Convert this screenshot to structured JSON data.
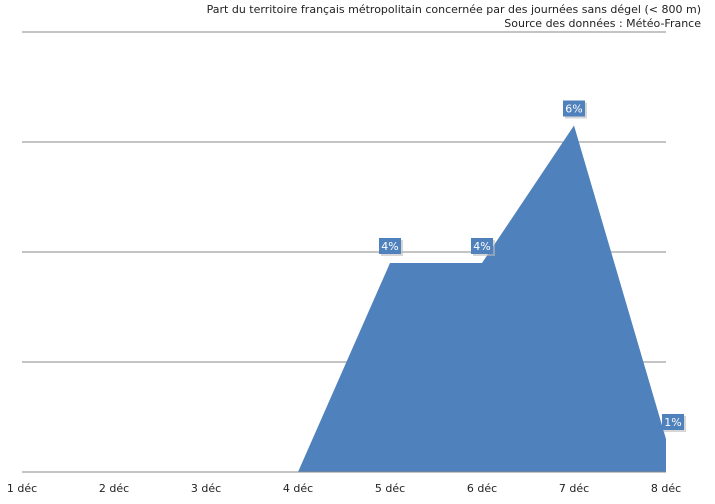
{
  "chart_data": {
    "type": "area",
    "title": "Part du territoire français métropolitain concernée par des journées sans dégel (< 800 m)",
    "subtitle": "Source des données : Météo-France",
    "categories": [
      "1 déc",
      "2 déc",
      "3 déc",
      "4 déc",
      "5 déc",
      "6 déc",
      "7 déc",
      "8 déc"
    ],
    "values": [
      0,
      0,
      0,
      0,
      3.8,
      3.8,
      6.3,
      0.6
    ],
    "data_labels": [
      null,
      null,
      null,
      null,
      "4%",
      "4%",
      "6%",
      "1%"
    ],
    "ylim": [
      0,
      8
    ],
    "yticks": [
      0,
      2,
      4,
      6,
      8
    ],
    "grid": true,
    "xlabel": "",
    "ylabel": "",
    "color": "#4f81bd"
  }
}
